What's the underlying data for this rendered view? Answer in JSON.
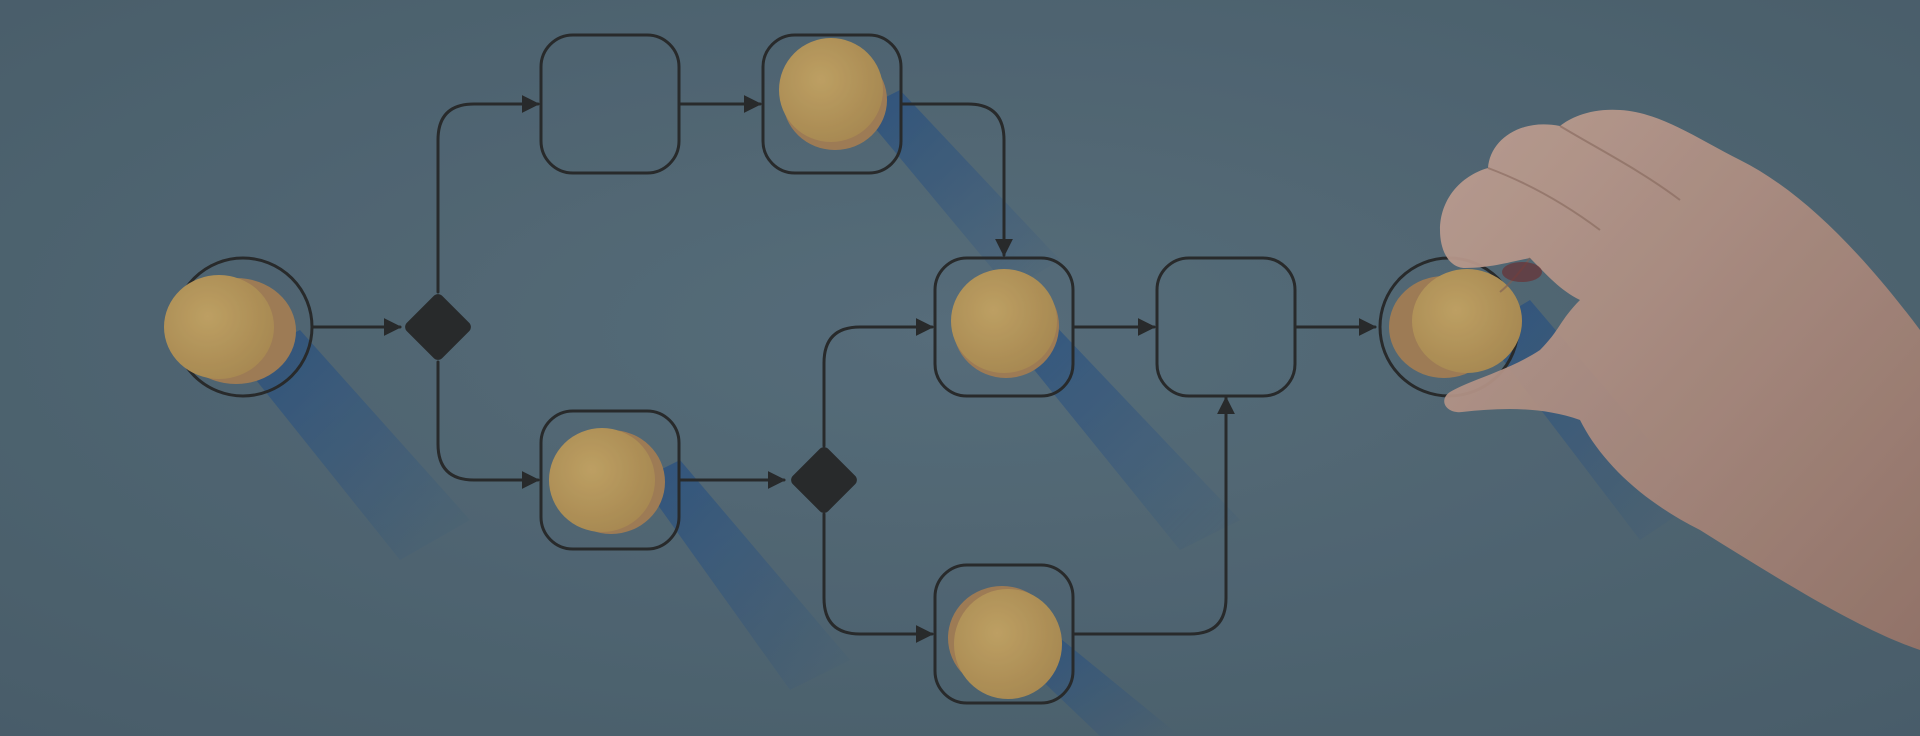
{
  "scene": {
    "subject": "process-flow-diagram-with-wooden-tokens",
    "colors": {
      "background": "#566c7a",
      "background_light": "#5f7684",
      "line": "#2b2b2b",
      "token_face": "#c9a45e",
      "token_edge": "#b0875a",
      "shadow": "#1f4f8f",
      "skin": "#c9a393",
      "skin_shade": "#a87f70"
    },
    "nodes": [
      {
        "id": "start",
        "kind": "start-circle",
        "has_token": true
      },
      {
        "id": "gateway-1",
        "kind": "decision-diamond",
        "has_token": false
      },
      {
        "id": "task-top-1",
        "kind": "task-box",
        "has_token": false
      },
      {
        "id": "task-top-2",
        "kind": "task-box",
        "has_token": true
      },
      {
        "id": "task-bottom-1",
        "kind": "task-box",
        "has_token": true
      },
      {
        "id": "gateway-2",
        "kind": "decision-diamond",
        "has_token": false
      },
      {
        "id": "task-merge",
        "kind": "task-box",
        "has_token": true
      },
      {
        "id": "task-bottom-2",
        "kind": "task-box",
        "has_token": true
      },
      {
        "id": "task-final",
        "kind": "task-box",
        "has_token": false
      },
      {
        "id": "end",
        "kind": "end-circle",
        "has_token": true
      }
    ],
    "hand": "placing-token-on-end-node"
  }
}
